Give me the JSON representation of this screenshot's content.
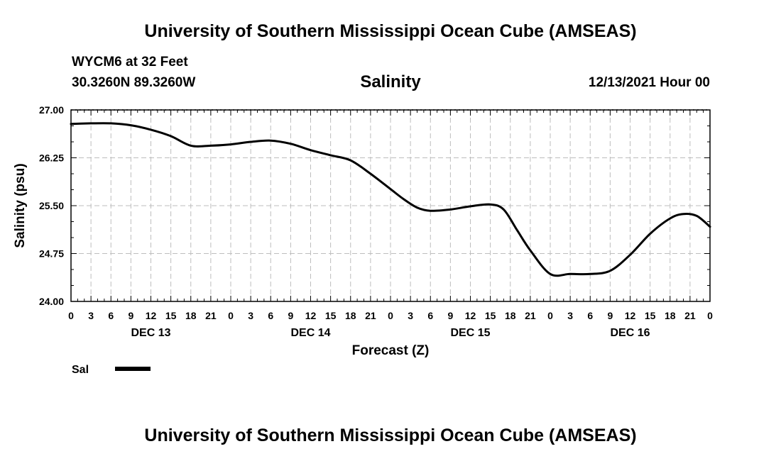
{
  "header": {
    "title": "University of Southern Mississippi Ocean Cube (AMSEAS)",
    "station": "WYCM6 at 32 Feet",
    "coordinates": "30.3260N  89.3260W",
    "variable": "Salinity",
    "run_time": "12/13/2021 Hour 00"
  },
  "footer": {
    "title": "University of Southern Mississippi Ocean Cube (AMSEAS)"
  },
  "legend": {
    "label": "Sal",
    "color": "#000000"
  },
  "chart_data": {
    "type": "line",
    "title": "Salinity",
    "xlabel": "Forecast (Z)",
    "ylabel": "Salinity (psu)",
    "xlim": [
      0,
      96
    ],
    "ylim": [
      24.0,
      27.0
    ],
    "grid": true,
    "y_ticks": [
      "24.00",
      "24.75",
      "25.50",
      "26.25",
      "27.00"
    ],
    "y_tick_values": [
      24.0,
      24.75,
      25.5,
      26.25,
      27.0
    ],
    "x_tick_labels": [
      "0",
      "3",
      "6",
      "9",
      "12",
      "15",
      "18",
      "21",
      "0",
      "3",
      "6",
      "9",
      "12",
      "15",
      "18",
      "21",
      "0",
      "3",
      "6",
      "9",
      "12",
      "15",
      "18",
      "21",
      "0",
      "3",
      "6",
      "9",
      "12",
      "15",
      "18",
      "21",
      "0"
    ],
    "x_tick_hours": [
      0,
      3,
      6,
      9,
      12,
      15,
      18,
      21,
      24,
      27,
      30,
      33,
      36,
      39,
      42,
      45,
      48,
      51,
      54,
      57,
      60,
      63,
      66,
      69,
      72,
      75,
      78,
      81,
      84,
      87,
      90,
      93,
      96
    ],
    "day_labels": [
      {
        "label": "DEC 13",
        "hour": 12
      },
      {
        "label": "DEC 14",
        "hour": 36
      },
      {
        "label": "DEC 15",
        "hour": 60
      },
      {
        "label": "DEC 16",
        "hour": 84
      }
    ],
    "series": [
      {
        "name": "Sal",
        "x": [
          0,
          3,
          6,
          9,
          12,
          15,
          18,
          21,
          24,
          27,
          30,
          33,
          36,
          39,
          42,
          45,
          48,
          50,
          52,
          54,
          57,
          60,
          63,
          65,
          67,
          69,
          72,
          75,
          78,
          81,
          84,
          87,
          90,
          92,
          94,
          96
        ],
        "values": [
          26.78,
          26.79,
          26.79,
          26.76,
          26.69,
          26.59,
          26.44,
          26.44,
          26.46,
          26.5,
          26.52,
          26.47,
          26.37,
          26.29,
          26.21,
          26.0,
          25.76,
          25.6,
          25.47,
          25.42,
          25.44,
          25.49,
          25.52,
          25.44,
          25.12,
          24.8,
          24.43,
          24.43,
          24.43,
          24.48,
          24.73,
          25.06,
          25.3,
          25.37,
          25.34,
          25.17
        ]
      }
    ]
  }
}
